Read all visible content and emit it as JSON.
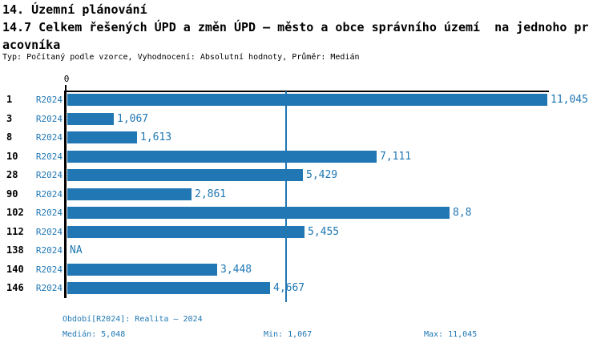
{
  "header": {
    "title_line1": "14. Územní plánování",
    "title_line2": "14.7 Celkem řešených ÚPD a změn ÚPD – město a obce správního území  na jednoho pr",
    "title_line3": "acovníka",
    "meta": "Typ: Počítaný podle vzorce, Vyhodnocení: Absolutní hodnoty, Průměr: Medián"
  },
  "colors": {
    "bar": "#2077B4",
    "accent_text": "#1F77B4",
    "axis": "#000000",
    "median_line": "#2077B4"
  },
  "chart_data": {
    "type": "bar",
    "orientation": "horizontal",
    "title": "14.7 Celkem řešených ÚPD a změn ÚPD – město a obce správního území na jednoho pracovníka",
    "categories": [
      "1",
      "3",
      "8",
      "10",
      "28",
      "90",
      "102",
      "112",
      "138",
      "140",
      "146"
    ],
    "series": [
      {
        "name": "R2024",
        "values": [
          11.045,
          1.067,
          1.613,
          7.111,
          5.429,
          2.861,
          8.8,
          5.455,
          null,
          3.448,
          4.667
        ],
        "value_labels": [
          "11,045",
          "1,067",
          "1,613",
          "7,111",
          "5,429",
          "2,861",
          "8,8",
          "5,455",
          "NA",
          "3,448",
          "4,667"
        ]
      }
    ],
    "xlim": [
      0,
      11.045
    ],
    "x_zero_label": "0",
    "grid": false,
    "legend_position": "none",
    "median_value": 5.048,
    "median_label": "5,048",
    "na_label": "NA"
  },
  "footer": {
    "period": "Období[R2024]: Realita – 2024",
    "median": "Medián: 5,048",
    "min": "Min: 1,067",
    "max": "Max: 11,045"
  }
}
